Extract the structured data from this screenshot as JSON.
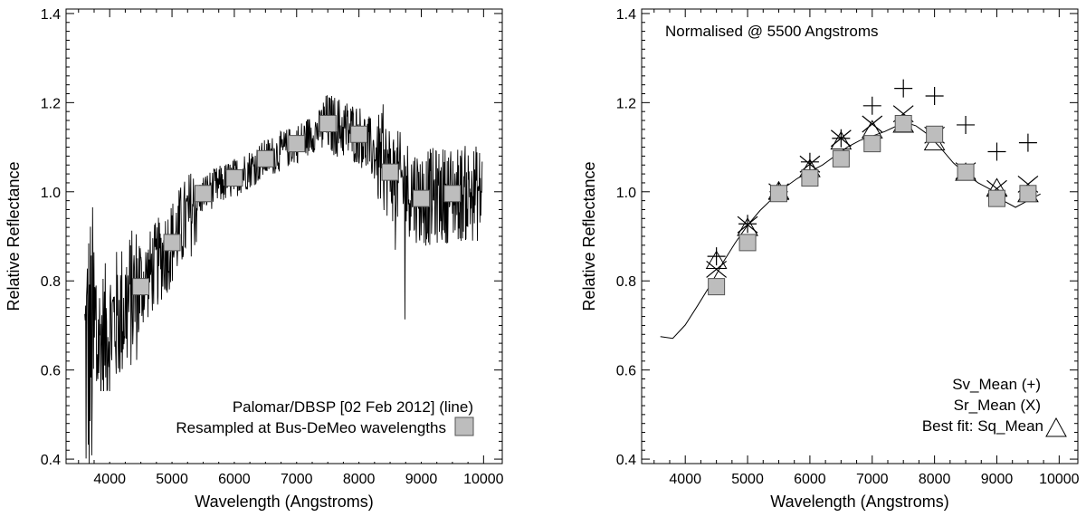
{
  "chart_data": [
    {
      "type": "line",
      "xlabel": "Wavelength (Angstroms)",
      "ylabel": "Relative Reflectance",
      "xlim": [
        3300,
        10300
      ],
      "ylim": [
        0.39,
        1.41
      ],
      "xticks": [
        4000,
        5000,
        6000,
        7000,
        8000,
        9000,
        10000
      ],
      "yticks": [
        0.4,
        0.6,
        0.8,
        1.0,
        1.2,
        1.4
      ],
      "ytick_labels": [
        "0.4",
        "0.6",
        "0.8",
        "1.0",
        "1.2",
        "1.4"
      ],
      "legend": {
        "position": "bottom-right",
        "line_entry": "Palomar/DBSP [02 Feb 2012]  (line)",
        "marker_entry": "Resampled at Bus-DeMeo wavelengths"
      },
      "series": [
        {
          "name": "Resampled at Bus-DeMeo wavelengths",
          "marker": "square",
          "x": [
            4500,
            5000,
            5500,
            6000,
            6500,
            7000,
            7500,
            8000,
            8500,
            9000,
            9500
          ],
          "y": [
            0.787,
            0.886,
            0.996,
            1.031,
            1.074,
            1.108,
            1.153,
            1.129,
            1.044,
            0.985,
            0.996
          ]
        }
      ]
    },
    {
      "type": "line",
      "title": "Normalised @ 5500   Angstroms",
      "xlabel": "Wavelength (Angstroms)",
      "ylabel": "Relative Reflectance",
      "xlim": [
        3300,
        10300
      ],
      "ylim": [
        0.39,
        1.41
      ],
      "xticks": [
        4000,
        5000,
        6000,
        7000,
        8000,
        9000,
        10000
      ],
      "yticks": [
        0.4,
        0.6,
        0.8,
        1.0,
        1.2,
        1.4
      ],
      "ytick_labels": [
        "0.4",
        "0.6",
        "0.8",
        "1.0",
        "1.2",
        "1.4"
      ],
      "legend": {
        "position": "bottom-right",
        "entries": [
          "Sv_Mean (+)",
          "Sr_Mean  (X)",
          "Best fit: Sq_Mean"
        ]
      },
      "series": [
        {
          "name": "Best fit: Sq_Mean",
          "marker": "line",
          "x": [
            3600,
            3800,
            4000,
            4200,
            4400,
            4600,
            4800,
            5000,
            5200,
            5400,
            5500,
            5600,
            5800,
            6000,
            6200,
            6400,
            6600,
            6800,
            7000,
            7200,
            7400,
            7550,
            7700,
            7900,
            8100,
            8300,
            8500,
            8700,
            8900,
            9100,
            9300,
            9500,
            9700
          ],
          "y": [
            0.675,
            0.671,
            0.701,
            0.745,
            0.79,
            0.84,
            0.885,
            0.925,
            0.958,
            0.985,
            1.0,
            1.01,
            1.03,
            1.045,
            1.06,
            1.08,
            1.1,
            1.115,
            1.125,
            1.135,
            1.148,
            1.155,
            1.148,
            1.128,
            1.098,
            1.065,
            1.04,
            1.02,
            1.005,
            0.98,
            0.965,
            0.98,
            0.995
          ]
        },
        {
          "name": "Sq_Mean (triangle)",
          "marker": "triangle",
          "x": [
            4500,
            5000,
            5500,
            6000,
            6500,
            7000,
            7500,
            8000,
            8500,
            9000,
            9500
          ],
          "y": [
            0.844,
            0.918,
            1.0,
            1.05,
            1.112,
            1.137,
            1.15,
            1.11,
            1.042,
            1.007,
            0.994
          ]
        },
        {
          "name": "Sv_Mean (+)",
          "marker": "plus",
          "x": [
            4500,
            5000,
            5500,
            6000,
            6500,
            7000,
            7500,
            8000,
            8500,
            9000,
            9500
          ],
          "y": [
            0.855,
            0.928,
            1.0,
            1.067,
            1.12,
            1.193,
            1.232,
            1.215,
            1.15,
            1.09,
            1.11
          ]
        },
        {
          "name": "Sr_Mean (X)",
          "marker": "x",
          "x": [
            4500,
            5000,
            5500,
            6000,
            6500,
            7000,
            7500,
            8000,
            8500,
            9000,
            9500
          ],
          "y": [
            0.826,
            0.926,
            1.0,
            1.062,
            1.12,
            1.152,
            1.175,
            1.127,
            1.047,
            1.007,
            1.017
          ]
        },
        {
          "name": "Resampled (square)",
          "marker": "square",
          "x": [
            4500,
            5000,
            5500,
            6000,
            6500,
            7000,
            7500,
            8000,
            8500,
            9000,
            9500
          ],
          "y": [
            0.787,
            0.886,
            0.996,
            1.031,
            1.074,
            1.108,
            1.153,
            1.129,
            1.044,
            0.985,
            0.996
          ]
        }
      ]
    }
  ]
}
